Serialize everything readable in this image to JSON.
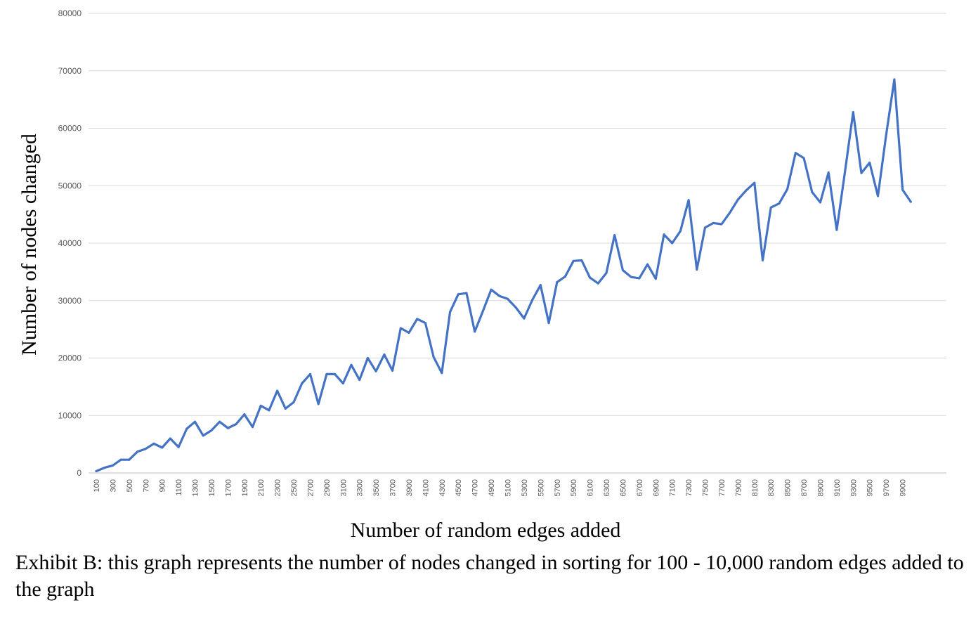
{
  "chart_data": {
    "type": "line",
    "title": "",
    "xlabel": "Number of random edges added",
    "ylabel": "Number of nodes changed",
    "ylim": [
      0,
      80000
    ],
    "yticks": [
      0,
      10000,
      20000,
      30000,
      40000,
      50000,
      60000,
      70000,
      80000
    ],
    "xtick_labels": [
      "100",
      "300",
      "500",
      "700",
      "900",
      "1100",
      "1300",
      "1500",
      "1700",
      "1900",
      "2100",
      "2300",
      "2500",
      "2700",
      "2900",
      "3100",
      "3300",
      "3500",
      "3700",
      "3900",
      "4100",
      "4300",
      "4500",
      "4700",
      "4900",
      "5100",
      "5300",
      "5500",
      "5700",
      "5900",
      "6100",
      "6300",
      "6500",
      "6700",
      "6900",
      "7100",
      "7300",
      "7500",
      "7700",
      "7900",
      "8100",
      "8300",
      "8500",
      "8700",
      "8900",
      "9100",
      "9300",
      "9500",
      "9700",
      "9900"
    ],
    "grid": true,
    "legend": "none",
    "color": "#4472C4",
    "series": [
      {
        "x": [
          100,
          200,
          300,
          400,
          500,
          600,
          700,
          800,
          900,
          1000,
          1100,
          1200,
          1300,
          1400,
          1500,
          1600,
          1700,
          1800,
          1900,
          2000,
          2100,
          2200,
          2300,
          2400,
          2500,
          2600,
          2700,
          2800,
          2900,
          3000,
          3100,
          3200,
          3300,
          3400,
          3500,
          3600,
          3700,
          3800,
          3900,
          4000,
          4100,
          4200,
          4300,
          4400,
          4500,
          4600,
          4700,
          4800,
          4900,
          5000,
          5100,
          5200,
          5300,
          5400,
          5500,
          5600,
          5700,
          5800,
          5900,
          6000,
          6100,
          6200,
          6300,
          6400,
          6500,
          6600,
          6700,
          6800,
          6900,
          7000,
          7100,
          7200,
          7300,
          7400,
          7500,
          7600,
          7700,
          7800,
          7900,
          8000,
          8100,
          8200,
          8300,
          8400,
          8500,
          8600,
          8700,
          8800,
          8900,
          9000,
          9100,
          9200,
          9300,
          9400,
          9500,
          9600,
          9700,
          9800,
          9900,
          10000
        ],
        "values": [
          300,
          900,
          1300,
          2300,
          2300,
          3700,
          4200,
          5100,
          4400,
          6000,
          4500,
          7700,
          8900,
          6500,
          7400,
          8900,
          7800,
          8500,
          10200,
          8000,
          11700,
          10900,
          14300,
          11200,
          12300,
          15600,
          17200,
          12000,
          17200,
          17200,
          15600,
          18800,
          16200,
          20000,
          17700,
          20600,
          17800,
          25200,
          24400,
          26800,
          26100,
          20200,
          17400,
          28000,
          31100,
          31300,
          24600,
          28200,
          31900,
          30800,
          30300,
          28800,
          26900,
          30100,
          32700,
          26100,
          33200,
          34200,
          36900,
          37000,
          34000,
          33000,
          34800,
          41400,
          35300,
          34100,
          33900,
          36300,
          33800,
          41500,
          40000,
          42100,
          47500,
          35400,
          42700,
          43500,
          43300,
          45300,
          47600,
          49200,
          50500,
          37000,
          46200,
          46900,
          49400,
          55700,
          54800,
          48900,
          47100,
          52300,
          42300,
          52400,
          62800,
          52200,
          54000,
          48200,
          58800,
          68500,
          49300,
          47200
        ]
      }
    ]
  },
  "caption": "Exhibit B: this graph represents the number of nodes changed in sorting for 100 - 10,000 random edges added to the graph"
}
